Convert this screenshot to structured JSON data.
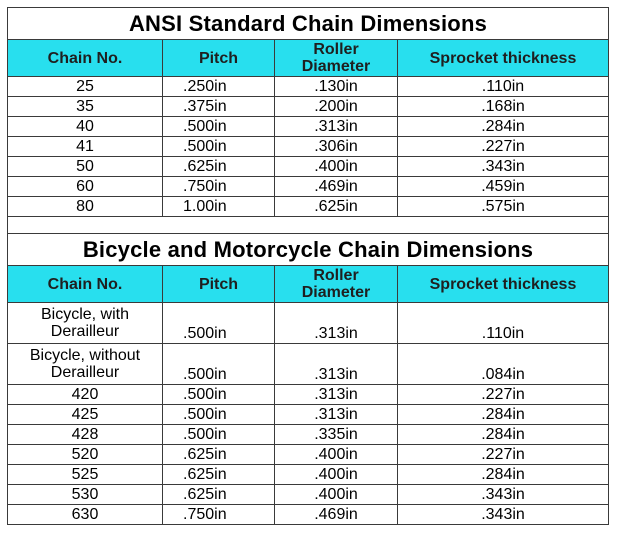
{
  "tables": [
    {
      "title": "ANSI Standard Chain Dimensions",
      "headers": {
        "chain_no": "Chain No.",
        "pitch": "Pitch",
        "roller_line1": "Roller",
        "roller_line2": "Diameter",
        "sprocket": "Sprocket thickness"
      },
      "rows": [
        {
          "chain": "25",
          "pitch": ".250in",
          "roller": ".130in",
          "sprocket": ".110in"
        },
        {
          "chain": "35",
          "pitch": ".375in",
          "roller": ".200in",
          "sprocket": ".168in"
        },
        {
          "chain": "40",
          "pitch": ".500in",
          "roller": ".313in",
          "sprocket": ".284in"
        },
        {
          "chain": "41",
          "pitch": ".500in",
          "roller": ".306in",
          "sprocket": ".227in"
        },
        {
          "chain": "50",
          "pitch": ".625in",
          "roller": ".400in",
          "sprocket": ".343in"
        },
        {
          "chain": "60",
          "pitch": ".750in",
          "roller": ".469in",
          "sprocket": ".459in"
        },
        {
          "chain": "80",
          "pitch": "1.00in",
          "roller": ".625in",
          "sprocket": ".575in"
        }
      ]
    },
    {
      "title": "Bicycle and Motorcycle Chain Dimensions",
      "headers": {
        "chain_no": "Chain No.",
        "pitch": "Pitch",
        "roller_line1": "Roller",
        "roller_line2": "Diameter",
        "sprocket": "Sprocket thickness"
      },
      "rows": [
        {
          "chain_line1": "Bicycle, with",
          "chain_line2": "Derailleur",
          "pitch": ".500in",
          "roller": ".313in",
          "sprocket": ".110in"
        },
        {
          "chain_line1": "Bicycle, without",
          "chain_line2": "Derailleur",
          "pitch": ".500in",
          "roller": ".313in",
          "sprocket": ".084in"
        },
        {
          "chain": "420",
          "pitch": ".500in",
          "roller": ".313in",
          "sprocket": ".227in"
        },
        {
          "chain": "425",
          "pitch": ".500in",
          "roller": ".313in",
          "sprocket": ".284in"
        },
        {
          "chain": "428",
          "pitch": ".500in",
          "roller": ".335in",
          "sprocket": ".284in"
        },
        {
          "chain": "520",
          "pitch": ".625in",
          "roller": ".400in",
          "sprocket": ".227in"
        },
        {
          "chain": "525",
          "pitch": ".625in",
          "roller": ".400in",
          "sprocket": ".284in"
        },
        {
          "chain": "530",
          "pitch": ".625in",
          "roller": ".400in",
          "sprocket": ".343in"
        },
        {
          "chain": "630",
          "pitch": ".750in",
          "roller": ".469in",
          "sprocket": ".343in"
        }
      ]
    }
  ],
  "colors": {
    "header_bg": "#28dfee",
    "border": "#3a3a3a"
  }
}
